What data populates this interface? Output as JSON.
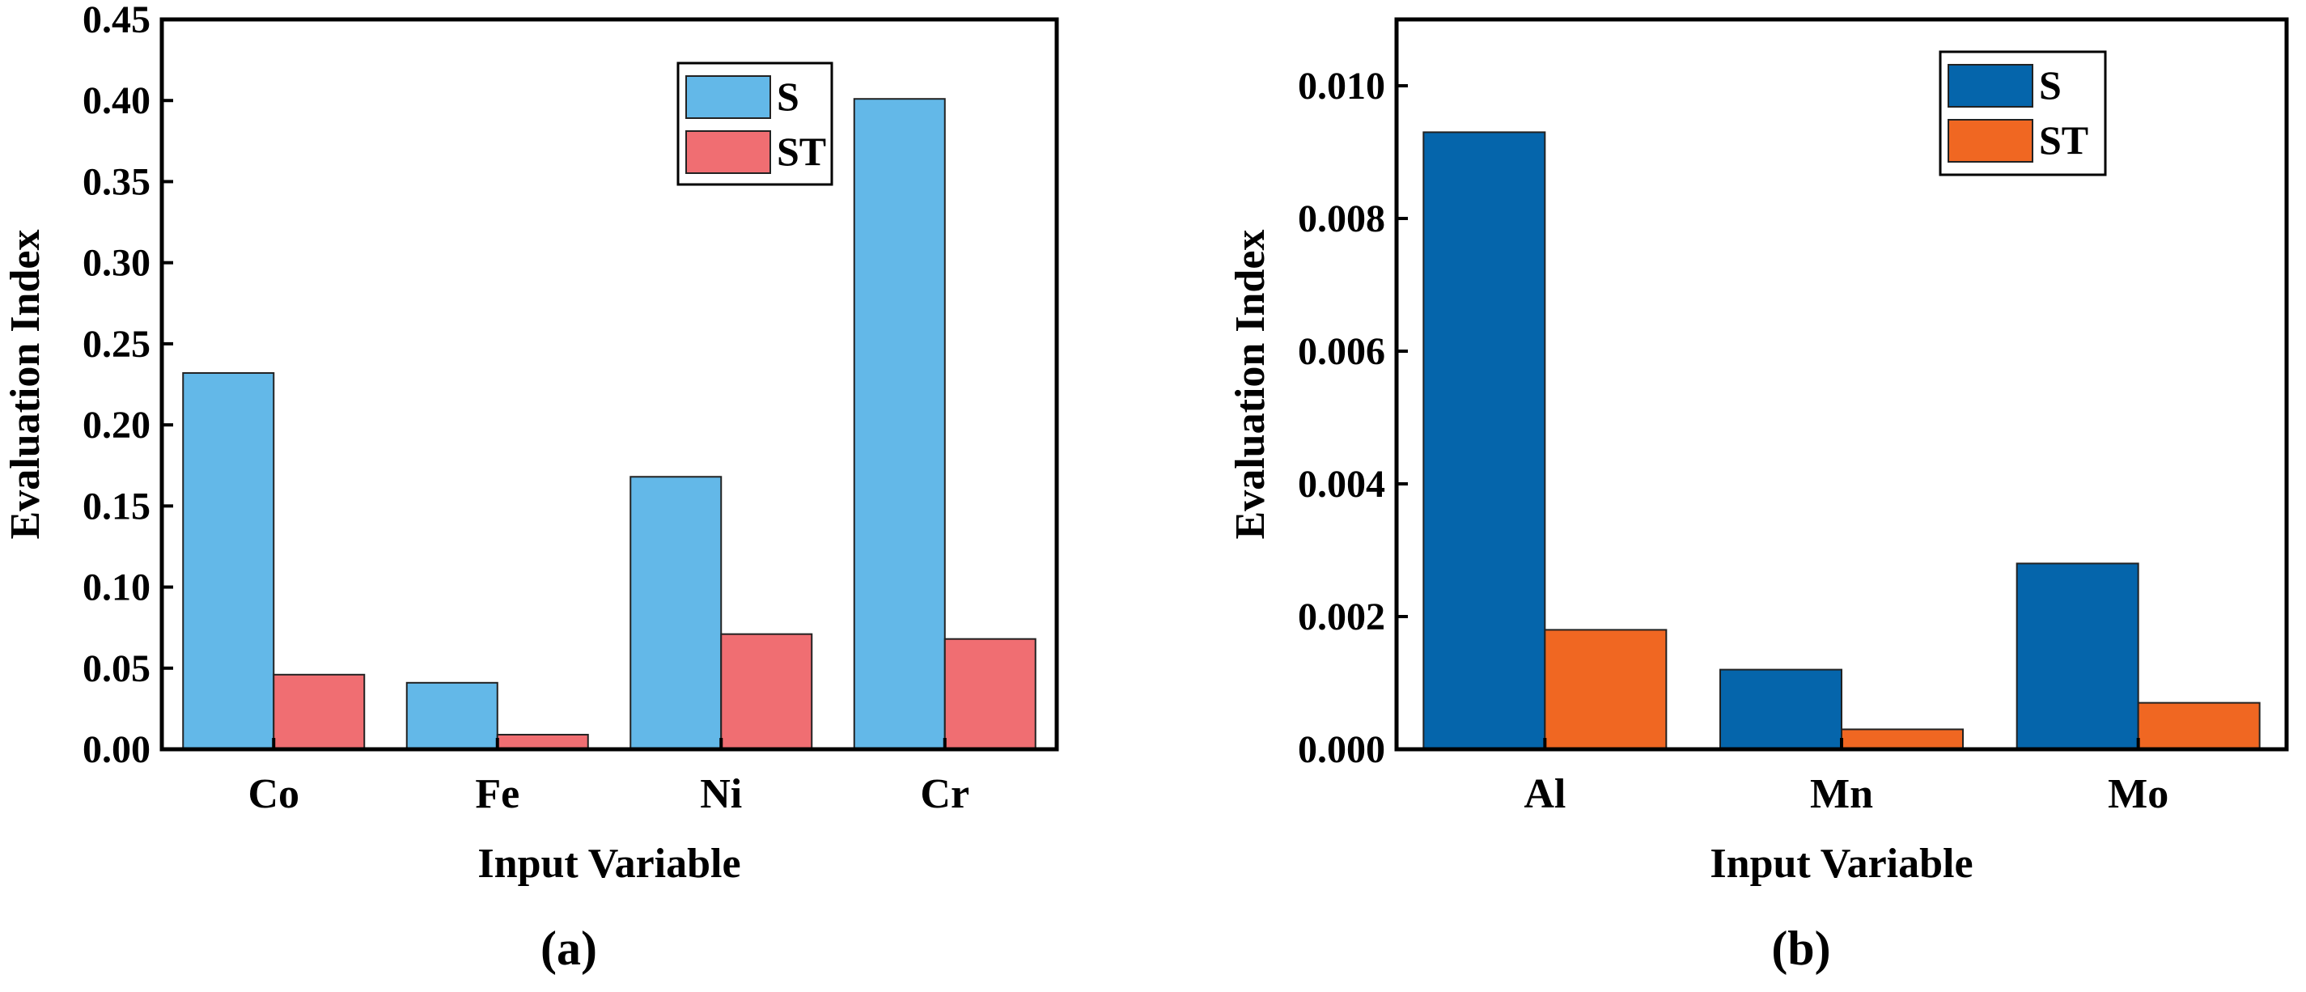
{
  "chart_data": [
    {
      "type": "bar",
      "panel_label": "(a)",
      "xlabel": "Input Variable",
      "ylabel": "Evaluation Index",
      "categories": [
        "Co",
        "Fe",
        "Ni",
        "Cr"
      ],
      "ylim": [
        0,
        0.45
      ],
      "yticks": [
        "0.00",
        "0.05",
        "0.10",
        "0.15",
        "0.20",
        "0.25",
        "0.30",
        "0.35",
        "0.40",
        "0.45"
      ],
      "series": [
        {
          "name": "S",
          "values": [
            0.232,
            0.041,
            0.168,
            0.401
          ],
          "color": "#63b8e8"
        },
        {
          "name": "ST",
          "values": [
            0.046,
            0.009,
            0.071,
            0.068
          ],
          "color": "#f06e72"
        }
      ],
      "legend": "top-right",
      "grid": false
    },
    {
      "type": "bar",
      "panel_label": "(b)",
      "xlabel": "Input Variable",
      "ylabel": "Evaluation Index",
      "categories": [
        "Al",
        "Mn",
        "Mo"
      ],
      "ylim": [
        0,
        0.011
      ],
      "yticks": [
        "0.000",
        "0.002",
        "0.004",
        "0.006",
        "0.008",
        "0.010"
      ],
      "series": [
        {
          "name": "S",
          "values": [
            0.0093,
            0.0012,
            0.0028
          ],
          "color": "#0565ab"
        },
        {
          "name": "ST",
          "values": [
            0.0018,
            0.0003,
            0.0007
          ],
          "color": "#f06722"
        }
      ],
      "legend": "top-right",
      "grid": false
    }
  ]
}
